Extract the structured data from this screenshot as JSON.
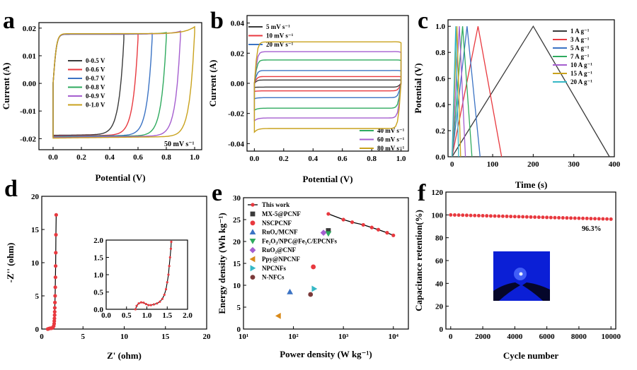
{
  "figure": {
    "panel_letters": [
      "a",
      "b",
      "c",
      "d",
      "e",
      "f"
    ]
  },
  "chart_data": [
    {
      "panel": "a",
      "type": "line",
      "title": "",
      "xlabel": "Potential (V)",
      "ylabel": "Current (A)",
      "xlim": [
        -0.1,
        1.05
      ],
      "ylim": [
        -0.024,
        0.022
      ],
      "xticks": [
        "0.0",
        "0.2",
        "0.4",
        "0.6",
        "0.8",
        "1.0"
      ],
      "xtick_values": [
        0,
        0.2,
        0.4,
        0.6,
        0.8,
        1.0
      ],
      "yticks": [
        "-0.02",
        "-0.01",
        "0.00",
        "0.01",
        "0.02"
      ],
      "ytick_values": [
        -0.02,
        -0.01,
        0,
        0.01,
        0.02
      ],
      "annotation": "50 mV s⁻¹",
      "series": [
        {
          "name": "0-0.5 V",
          "color": "#3a3a3a",
          "vmax": 0.5,
          "i_top": 0.0178,
          "i_bot": -0.0185,
          "i_peak": 0.0178
        },
        {
          "name": "0-0.6 V",
          "color": "#e8393f",
          "vmax": 0.6,
          "i_top": 0.0178,
          "i_bot": -0.0187,
          "i_peak": 0.0179
        },
        {
          "name": "0-0.7 V",
          "color": "#3b73c4",
          "vmax": 0.7,
          "i_top": 0.0178,
          "i_bot": -0.0188,
          "i_peak": 0.0181
        },
        {
          "name": "0-0.8 V",
          "color": "#2eaa5e",
          "vmax": 0.8,
          "i_top": 0.0179,
          "i_bot": -0.0189,
          "i_peak": 0.0184
        },
        {
          "name": "0-0.9 V",
          "color": "#a55ecf",
          "vmax": 0.9,
          "i_top": 0.0179,
          "i_bot": -0.019,
          "i_peak": 0.0189
        },
        {
          "name": "0-1.0 V",
          "color": "#c9a21d",
          "vmax": 1.0,
          "i_top": 0.018,
          "i_bot": -0.0192,
          "i_peak": 0.0205
        }
      ]
    },
    {
      "panel": "b",
      "type": "line",
      "title": "",
      "xlabel": "Potential (V)",
      "ylabel": "Current (A)",
      "xlim": [
        -0.05,
        1.05
      ],
      "ylim": [
        -0.045,
        0.045
      ],
      "xticks": [
        "0.0",
        "0.2",
        "0.4",
        "0.6",
        "0.8",
        "1.0"
      ],
      "xtick_values": [
        0,
        0.2,
        0.4,
        0.6,
        0.8,
        1.0
      ],
      "yticks": [
        "-0.04",
        "-0.02",
        "0.00",
        "0.02",
        "0.04"
      ],
      "ytick_values": [
        -0.04,
        -0.02,
        0,
        0.02,
        0.04
      ],
      "vmax": 1.0,
      "series": [
        {
          "name": "5  mV s⁻¹",
          "color": "#3a3a3a",
          "i_top": 0.0022,
          "i_bot": -0.0025
        },
        {
          "name": "10 mV s⁻¹",
          "color": "#e8393f",
          "i_top": 0.0045,
          "i_bot": -0.005
        },
        {
          "name": "20 mV s⁻¹",
          "color": "#3b73c4",
          "i_top": 0.0085,
          "i_bot": -0.0095
        },
        {
          "name": "40 mV s⁻¹",
          "color": "#2eaa5e",
          "i_top": 0.0155,
          "i_bot": -0.0165
        },
        {
          "name": "60 mV s⁻¹",
          "color": "#a55ecf",
          "i_top": 0.021,
          "i_bot": -0.023
        },
        {
          "name": "80 mV s⁻¹",
          "color": "#c9a21d",
          "i_top": 0.0275,
          "i_bot": -0.03
        }
      ]
    },
    {
      "panel": "c",
      "type": "line",
      "title": "",
      "xlabel": "Time (s)",
      "ylabel": "Potential (V)",
      "xlim": [
        -10,
        400
      ],
      "ylim": [
        0,
        1.05
      ],
      "xticks": [
        "0",
        "100",
        "200",
        "300",
        "400"
      ],
      "xtick_values": [
        0,
        100,
        200,
        300,
        400
      ],
      "yticks": [
        "0.0",
        "0.2",
        "0.4",
        "0.6",
        "0.8",
        "1.0"
      ],
      "ytick_values": [
        0,
        0.2,
        0.4,
        0.6,
        0.8,
        1.0
      ],
      "series": [
        {
          "name": "1  A g⁻¹",
          "color": "#3a3a3a",
          "t_charge": 200,
          "t_end": 388
        },
        {
          "name": "3  A g⁻¹",
          "color": "#e8393f",
          "t_charge": 64,
          "t_end": 122
        },
        {
          "name": "5  A g⁻¹",
          "color": "#3b73c4",
          "t_charge": 37,
          "t_end": 69
        },
        {
          "name": "7  A g⁻¹",
          "color": "#2eaa5e",
          "t_charge": 26,
          "t_end": 49
        },
        {
          "name": "10 A g⁻¹",
          "color": "#a55ecf",
          "t_charge": 18,
          "t_end": 33
        },
        {
          "name": "15 A g⁻¹",
          "color": "#c9a21d",
          "t_charge": 12,
          "t_end": 21
        },
        {
          "name": "20 A g⁻¹",
          "color": "#35b8c6",
          "t_charge": 9,
          "t_end": 16
        }
      ]
    },
    {
      "panel": "d",
      "type": "scatter",
      "title": "",
      "xlabel": "Z' (ohm)",
      "ylabel": "-Z'' (ohm)",
      "xlim": [
        0,
        20
      ],
      "ylim": [
        0,
        20
      ],
      "xticks": [
        "0",
        "5",
        "10",
        "15",
        "20"
      ],
      "xtick_values": [
        0,
        5,
        10,
        15,
        20
      ],
      "yticks": [
        "0",
        "5",
        "10",
        "15",
        "20"
      ],
      "ytick_values": [
        0,
        5,
        10,
        15,
        20
      ],
      "points": [
        [
          0.72,
          0
        ],
        [
          0.78,
          0.02
        ],
        [
          0.86,
          0.06
        ],
        [
          0.95,
          0.1
        ],
        [
          1.05,
          0.12
        ],
        [
          1.15,
          0.12
        ],
        [
          1.25,
          0.15
        ],
        [
          1.35,
          0.25
        ],
        [
          1.45,
          0.45
        ],
        [
          1.5,
          0.8
        ],
        [
          1.52,
          1.2
        ],
        [
          1.54,
          1.6
        ],
        [
          1.56,
          2.1
        ],
        [
          1.57,
          2.6
        ],
        [
          1.58,
          3.2
        ],
        [
          1.6,
          4.0
        ],
        [
          1.62,
          5.0
        ],
        [
          1.64,
          6.3
        ],
        [
          1.66,
          7.8
        ],
        [
          1.68,
          9.5
        ],
        [
          1.7,
          11.5
        ],
        [
          1.72,
          14.2
        ],
        [
          1.75,
          17.2
        ]
      ],
      "inset": {
        "xlim": [
          0,
          2.0
        ],
        "ylim": [
          0,
          2.0
        ],
        "xticks": [
          "0.0",
          "0.5",
          "1.0",
          "1.5",
          "2.0"
        ],
        "xtick_values": [
          0,
          0.5,
          1.0,
          1.5,
          2.0
        ],
        "yticks": [
          "0.0",
          "0.5",
          "1.0",
          "1.5",
          "2.0"
        ],
        "ytick_values": [
          0,
          0.5,
          1.0,
          1.5,
          2.0
        ],
        "points": [
          [
            0.72,
            0
          ],
          [
            0.75,
            0.1
          ],
          [
            0.8,
            0.17
          ],
          [
            0.86,
            0.2
          ],
          [
            0.92,
            0.19
          ],
          [
            0.98,
            0.15
          ],
          [
            1.04,
            0.12
          ],
          [
            1.1,
            0.12
          ],
          [
            1.17,
            0.14
          ],
          [
            1.25,
            0.17
          ],
          [
            1.32,
            0.22
          ],
          [
            1.38,
            0.3
          ],
          [
            1.43,
            0.42
          ],
          [
            1.47,
            0.58
          ],
          [
            1.5,
            0.78
          ],
          [
            1.53,
            1.0
          ],
          [
            1.55,
            1.25
          ],
          [
            1.57,
            1.5
          ],
          [
            1.59,
            1.75
          ],
          [
            1.6,
            1.95
          ]
        ]
      }
    },
    {
      "panel": "e",
      "type": "scatter",
      "title": "",
      "xlabel": "Power density (W kg⁻¹)",
      "ylabel": "Energy density (Wh kg⁻¹)",
      "xscale": "log",
      "xlim": [
        10,
        20000
      ],
      "ylim": [
        0,
        30
      ],
      "xticks": [
        "10¹",
        "10²",
        "10³",
        "10⁴"
      ],
      "xtick_values": [
        10,
        100,
        1000,
        10000
      ],
      "yticks": [
        "0",
        "5",
        "10",
        "15",
        "20",
        "25",
        "30"
      ],
      "ytick_values": [
        0,
        5,
        10,
        15,
        20,
        25,
        30
      ],
      "this_work": {
        "name": "This work",
        "color": "#e8393f",
        "x": [
          500,
          1000,
          1500,
          2500,
          3700,
          5000,
          7500,
          10000
        ],
        "y": [
          26.3,
          25.0,
          24.4,
          23.8,
          23.2,
          22.7,
          22.0,
          21.4
        ]
      },
      "references": [
        {
          "name": "MX-5@PCNF",
          "color": "#3a3a3a",
          "marker": "square",
          "x": 500,
          "y": 22.5
        },
        {
          "name": "NSCPCNF",
          "color": "#e8393f",
          "marker": "circle",
          "x": 250,
          "y": 14.2
        },
        {
          "name": "RuOₓ/MCNF",
          "color": "#3b73c4",
          "marker": "triangle-up",
          "x": 85,
          "y": 8.5
        },
        {
          "name": "Fe₂O₃/NPC@Fe₃C/EPCNFs",
          "color": "#2eaa5e",
          "marker": "triangle-down",
          "x": 500,
          "y": 21.8
        },
        {
          "name": "RuO₂@CNF",
          "color": "#a55ecf",
          "marker": "diamond",
          "x": 400,
          "y": 22.0
        },
        {
          "name": "Ppy@NPCNF",
          "color": "#d98a1a",
          "marker": "triangle-left",
          "x": 50,
          "y": 3.0
        },
        {
          "name": "NPCNFs",
          "color": "#35b8c6",
          "marker": "triangle-right",
          "x": 260,
          "y": 9.2
        },
        {
          "name": "N-NFCs",
          "color": "#7b3a3a",
          "marker": "circle",
          "x": 220,
          "y": 7.9
        }
      ]
    },
    {
      "panel": "f",
      "type": "scatter",
      "title": "",
      "xlabel": "Cycle number",
      "ylabel": "Capacitance retention(%)",
      "xlim": [
        -300,
        10300
      ],
      "ylim": [
        0,
        120
      ],
      "xticks": [
        "0",
        "2000",
        "4000",
        "6000",
        "8000",
        "10000"
      ],
      "xtick_values": [
        0,
        2000,
        4000,
        6000,
        8000,
        10000
      ],
      "yticks": [
        "0",
        "20",
        "40",
        "60",
        "80",
        "100",
        "120"
      ],
      "ytick_values": [
        0,
        20,
        40,
        60,
        80,
        100,
        120
      ],
      "start": 100.0,
      "end": 96.3,
      "n_points": 41,
      "annotation": "96.3%"
    }
  ]
}
